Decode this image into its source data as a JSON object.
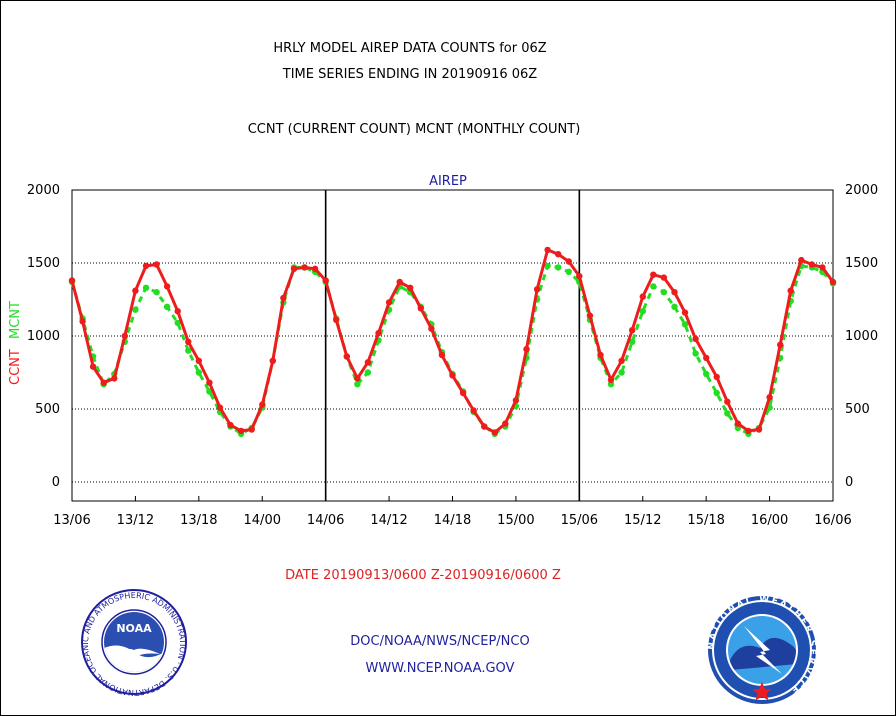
{
  "header": {
    "title_line1": "HRLY MODEL AIREP DATA COUNTS for 06Z",
    "title_line2": "TIME SERIES ENDING IN 20190916 06Z",
    "subtitle": "CCNT (CURRENT COUNT) MCNT (MONTHLY COUNT)"
  },
  "footer": {
    "date_range": "DATE 20190913/0600 Z-20190916/0600 Z",
    "org": "DOC/NOAA/NWS/NCEP/NCO",
    "url": "WWW.NCEP.NOAA.GOV"
  },
  "logos": {
    "noaa": {
      "center_text": "NOAA",
      "ring_text": "NATIONAL OCEANIC AND ATMOSPHERIC ADMINISTRATION · U.S. DEPARTMENT OF COMMERCE",
      "icon": "noaa-seal-icon"
    },
    "nws": {
      "ring_text": "NATIONAL WEATHER SERVICE",
      "icon": "nws-seal-icon"
    }
  },
  "colors": {
    "ccnt": "#ee1c1c",
    "mcnt": "#22dd22",
    "dark_blue": "#1f1f9e",
    "date_red": "#dd2222"
  },
  "chart_data": {
    "type": "line",
    "title": "AIREP",
    "ylabel_ccnt": "CCNT",
    "ylabel_mcnt": "MCNT",
    "ylim": [
      -130,
      2000
    ],
    "y_ticks": [
      0,
      500,
      1000,
      1500,
      2000
    ],
    "x_tick_labels": [
      "13/06",
      "13/12",
      "13/18",
      "14/00",
      "14/06",
      "14/12",
      "14/18",
      "15/00",
      "15/06",
      "15/12",
      "15/18",
      "16/00",
      "16/06"
    ],
    "day_dividers": [
      "14/06",
      "15/06"
    ],
    "x_hours": [
      0,
      1,
      2,
      3,
      4,
      5,
      6,
      7,
      8,
      9,
      10,
      11,
      12,
      13,
      14,
      15,
      16,
      17,
      18,
      19,
      20,
      21,
      22,
      23,
      24,
      25,
      26,
      27,
      28,
      29,
      30,
      31,
      32,
      33,
      34,
      35,
      36,
      37,
      38,
      39,
      40,
      41,
      42,
      43,
      44,
      45,
      46,
      47,
      48,
      49,
      50,
      51,
      52,
      53,
      54,
      55,
      56,
      57,
      58,
      59,
      60,
      61,
      62,
      63,
      64,
      65,
      66,
      67,
      68,
      69,
      70,
      71,
      72
    ],
    "series": [
      {
        "name": "CCNT",
        "values": [
          1380,
          1100,
          790,
          680,
          710,
          1000,
          1310,
          1480,
          1490,
          1340,
          1170,
          960,
          830,
          680,
          510,
          390,
          350,
          360,
          530,
          830,
          1260,
          1460,
          1470,
          1460,
          1380,
          1110,
          860,
          710,
          820,
          1020,
          1230,
          1370,
          1330,
          1190,
          1050,
          870,
          730,
          610,
          490,
          380,
          340,
          400,
          560,
          910,
          1320,
          1590,
          1560,
          1510,
          1410,
          1140,
          870,
          700,
          830,
          1040,
          1270,
          1420,
          1400,
          1300,
          1160,
          980,
          850,
          720,
          550,
          400,
          350,
          360,
          580,
          940,
          1310,
          1520,
          1490,
          1470,
          1370
        ]
      },
      {
        "name": "MCNT",
        "values": [
          1370,
          1120,
          860,
          670,
          740,
          960,
          1180,
          1330,
          1300,
          1200,
          1090,
          900,
          750,
          620,
          480,
          380,
          330,
          370,
          510,
          830,
          1230,
          1470,
          1470,
          1440,
          1370,
          1120,
          860,
          670,
          750,
          970,
          1180,
          1340,
          1300,
          1200,
          1080,
          890,
          740,
          620,
          480,
          380,
          330,
          380,
          520,
          850,
          1250,
          1480,
          1470,
          1440,
          1370,
          1110,
          850,
          670,
          750,
          960,
          1170,
          1340,
          1300,
          1200,
          1080,
          880,
          740,
          610,
          470,
          370,
          330,
          370,
          510,
          850,
          1240,
          1480,
          1470,
          1440,
          1360
        ]
      }
    ]
  }
}
